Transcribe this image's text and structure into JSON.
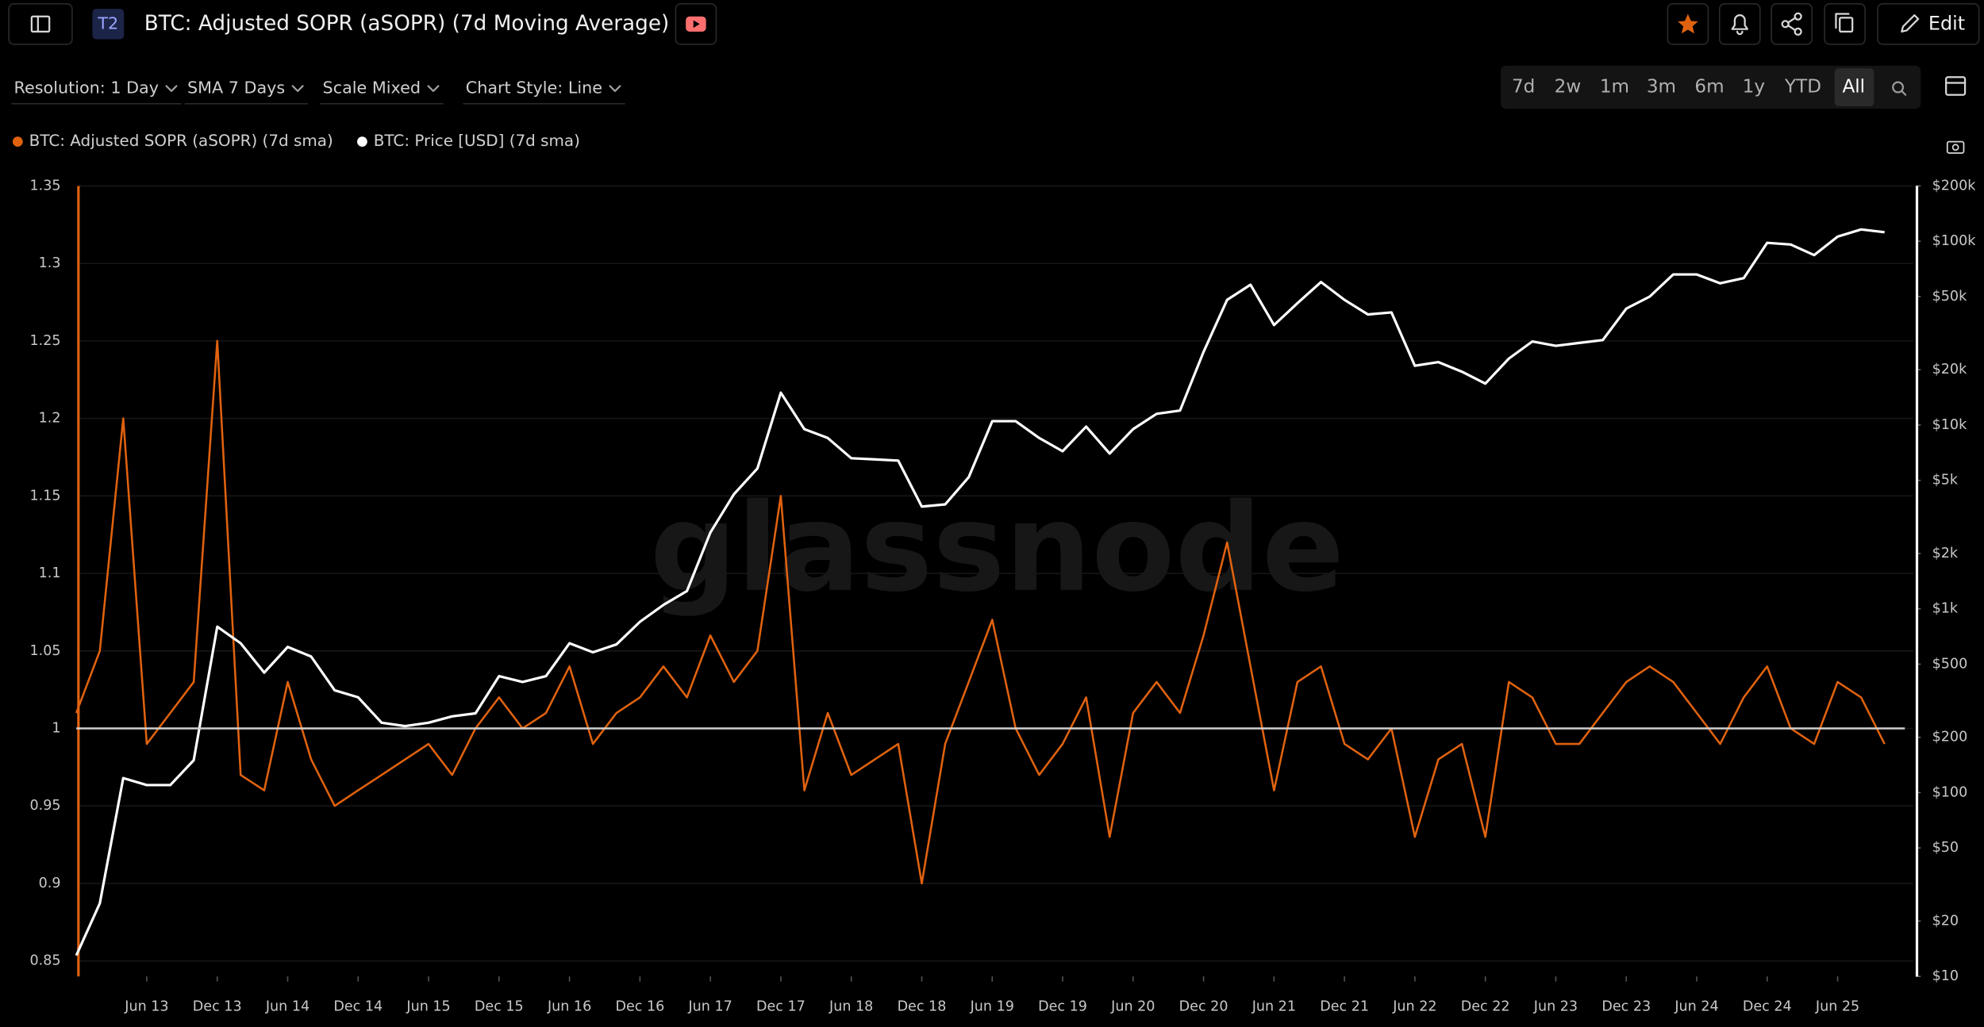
{
  "header": {
    "badge": "T2",
    "title": "BTC: Adjusted SOPR (aSOPR) (7d Moving Average)",
    "edit": "Edit"
  },
  "controls": [
    "Resolution: 1 Day",
    "SMA 7 Days",
    "Scale Mixed",
    "Chart Style: Line"
  ],
  "ranges": [
    "7d",
    "2w",
    "1m",
    "3m",
    "6m",
    "1y",
    "YTD",
    "All"
  ],
  "watermark": "glassnode",
  "chart_data": {
    "type": "line",
    "categories": [
      null,
      null,
      null,
      "Jun 13",
      null,
      null,
      "Dec 13",
      null,
      null,
      "Jun 14",
      null,
      null,
      "Dec 14",
      null,
      null,
      "Jun 15",
      null,
      null,
      "Dec 15",
      null,
      null,
      "Jun 16",
      null,
      null,
      "Dec 16",
      null,
      null,
      "Jun 17",
      null,
      null,
      "Dec 17",
      null,
      null,
      "Jun 18",
      null,
      null,
      "Dec 18",
      null,
      null,
      "Jun 19",
      null,
      null,
      "Dec 19",
      null,
      null,
      "Jun 20",
      null,
      null,
      "Dec 20",
      null,
      null,
      "Jun 21",
      null,
      null,
      "Dec 21",
      null,
      null,
      "Jun 22",
      null,
      null,
      "Dec 22",
      null,
      null,
      "Jun 23",
      null,
      null,
      "Dec 23",
      null,
      null,
      "Jun 24",
      null,
      null,
      "Dec 24",
      null,
      null,
      "Jun 25",
      null,
      null
    ],
    "series": [
      {
        "name": "BTC: Adjusted SOPR (aSOPR) (7d sma)",
        "color": "#e0620f",
        "values": [
          1.01,
          1.05,
          1.2,
          0.99,
          1.01,
          1.03,
          1.25,
          0.97,
          0.96,
          1.03,
          0.98,
          0.95,
          0.96,
          0.97,
          0.98,
          0.99,
          0.97,
          1.0,
          1.02,
          1.0,
          1.01,
          1.04,
          0.99,
          1.01,
          1.02,
          1.04,
          1.02,
          1.06,
          1.03,
          1.05,
          1.15,
          0.96,
          1.01,
          0.97,
          0.98,
          0.99,
          0.9,
          0.99,
          1.03,
          1.07,
          1.0,
          0.97,
          0.99,
          1.02,
          0.93,
          1.01,
          1.03,
          1.01,
          1.06,
          1.12,
          1.04,
          0.96,
          1.03,
          1.04,
          0.99,
          0.98,
          1.0,
          0.93,
          0.98,
          0.99,
          0.93,
          1.03,
          1.02,
          0.99,
          0.99,
          1.01,
          1.03,
          1.04,
          1.03,
          1.01,
          0.99,
          1.02,
          1.04,
          1.0,
          0.99,
          1.03,
          1.02,
          0.99
        ]
      },
      {
        "name": "BTC: Price [USD] (7d sma)",
        "color": "#ffffff",
        "axis": "y2",
        "values": [
          13,
          25,
          120,
          110,
          110,
          150,
          800,
          650,
          450,
          620,
          550,
          360,
          330,
          240,
          230,
          240,
          260,
          270,
          430,
          400,
          430,
          650,
          580,
          640,
          850,
          1050,
          1250,
          2600,
          4200,
          5800,
          15000,
          9500,
          8500,
          6600,
          6500,
          6400,
          3600,
          3700,
          5200,
          10500,
          10500,
          8500,
          7200,
          9800,
          7000,
          9500,
          11500,
          12000,
          25000,
          48000,
          58000,
          35000,
          46000,
          60000,
          48000,
          40000,
          41000,
          21000,
          22000,
          19500,
          16800,
          23000,
          28500,
          27000,
          28000,
          29000,
          43000,
          50000,
          66000,
          66000,
          59000,
          63000,
          98000,
          96000,
          84000,
          106000,
          116000,
          112000
        ]
      }
    ],
    "ylim": [
      0.84,
      1.35
    ],
    "yticks": [
      0.85,
      0.9,
      0.95,
      1,
      1.05,
      1.1,
      1.15,
      1.2,
      1.25,
      1.3,
      1.35
    ],
    "y2lim": [
      10,
      200000
    ],
    "y2scale": "log",
    "y2ticks": [
      {
        "value": 10,
        "label": "$10"
      },
      {
        "value": 20,
        "label": "$20"
      },
      {
        "value": 50,
        "label": "$50"
      },
      {
        "value": 100,
        "label": "$100"
      },
      {
        "value": 200,
        "label": "$200"
      },
      {
        "value": 500,
        "label": "$500"
      },
      {
        "value": 1000,
        "label": "$1k"
      },
      {
        "value": 2000,
        "label": "$2k"
      },
      {
        "value": 5000,
        "label": "$5k"
      },
      {
        "value": 10000,
        "label": "$10k"
      },
      {
        "value": 20000,
        "label": "$20k"
      },
      {
        "value": 50000,
        "label": "$50k"
      },
      {
        "value": 100000,
        "label": "$100k"
      },
      {
        "value": 200000,
        "label": "$200k"
      }
    ],
    "hline": 1,
    "hline_color": "#cfcfcf",
    "grid": true,
    "legend": "top-left"
  }
}
